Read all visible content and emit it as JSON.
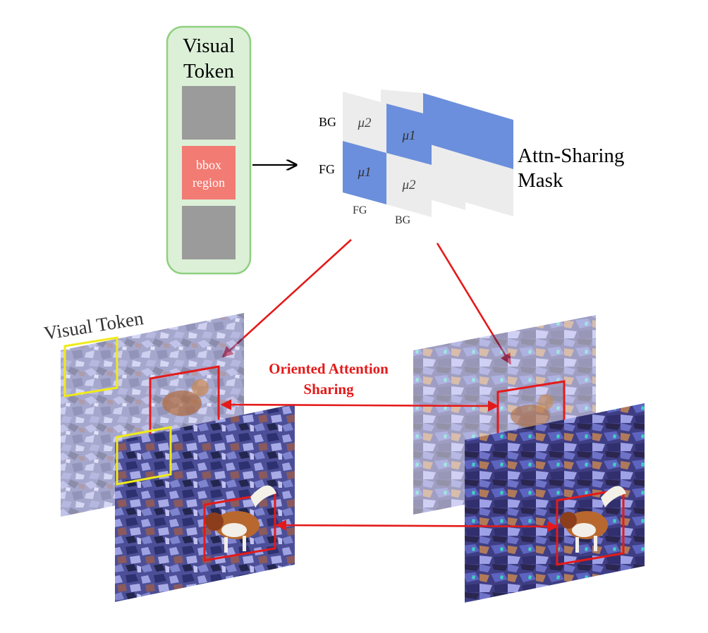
{
  "token_panel": {
    "title_line1": "Visual",
    "title_line2": "Token",
    "bbox_line1": "bbox",
    "bbox_line2": "region"
  },
  "mask": {
    "row_labels": [
      "BG",
      "FG"
    ],
    "col_labels": [
      "FG",
      "BG"
    ],
    "cells": [
      "μ2",
      "μ1",
      "μ1",
      "μ2"
    ],
    "caption_line1": "Attn-Sharing",
    "caption_line2": "Mask"
  },
  "bottom": {
    "visual_token_label": "Visual Token",
    "oas_line1": "Oriented Attention",
    "oas_line2": "Sharing"
  },
  "colors": {
    "panel_fill": "#dcf0d8",
    "panel_border": "#8fd07f",
    "token_gray": "#9b9b9b",
    "bbox_red": "#f27b73",
    "mask_blue": "#6b8fdc",
    "mask_light": "#ececec",
    "arrow_red": "#e41a1a",
    "bbox_yellow": "#f0ea1a"
  }
}
